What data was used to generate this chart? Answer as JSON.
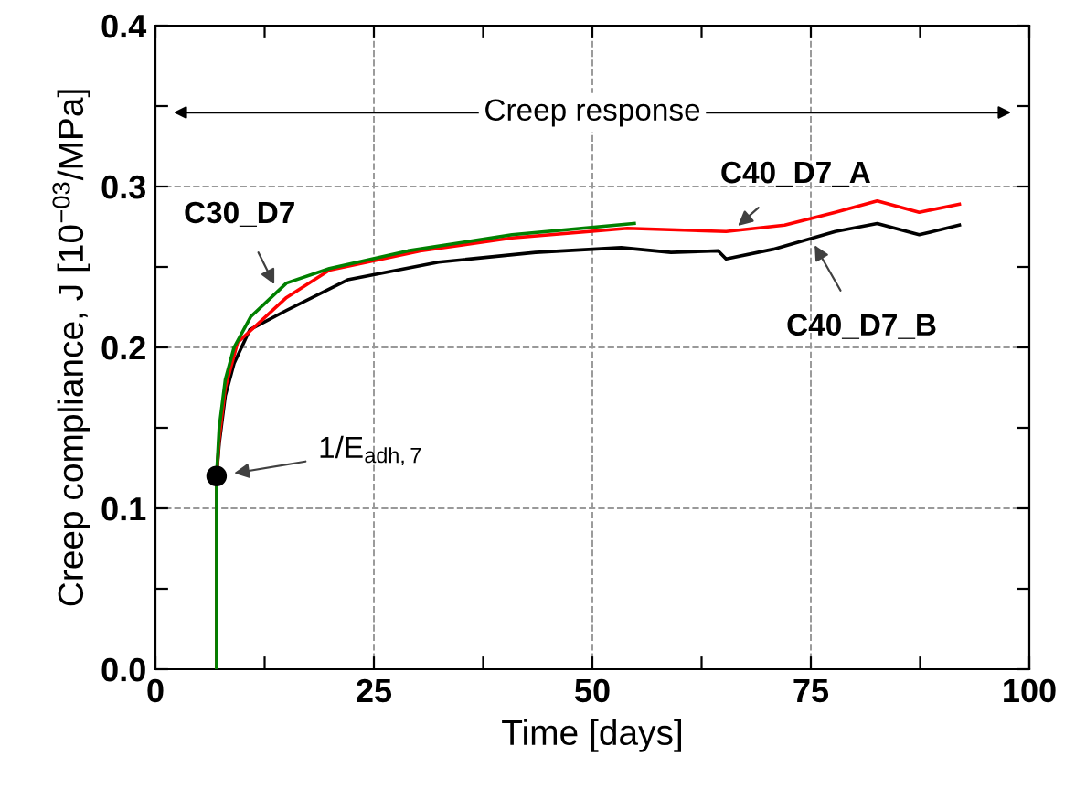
{
  "chart_data": {
    "type": "line",
    "xlabel": "Time [days]",
    "ylabel": "Creep compliance, J [10$^{−03}$/MPa]",
    "xlim": [
      0,
      100
    ],
    "xticks": [
      0,
      {
        "value": 12.5,
        "label": null
      },
      25,
      {
        "value": 37.5,
        "label": null
      },
      50,
      {
        "value": 62.5,
        "label": null
      },
      75,
      {
        "value": 87.5,
        "label": null
      },
      100
    ],
    "ylim": [
      0,
      0.4
    ],
    "yticks": [
      {
        "value": 0,
        "label": "0.0"
      },
      {
        "value": 0.05,
        "label": null
      },
      {
        "value": 0.1,
        "label": "0.1"
      },
      {
        "value": 0.15,
        "label": null
      },
      {
        "value": 0.2,
        "label": "0.2"
      },
      {
        "value": 0.25,
        "label": null
      },
      {
        "value": 0.3,
        "label": "0.3"
      },
      {
        "value": 0.35,
        "label": null
      },
      {
        "value": 0.4,
        "label": "0.4"
      }
    ],
    "grid": true,
    "legend": false,
    "line_style": "solid",
    "marker": "none",
    "series": [
      {
        "name": "C40_D7_B",
        "color": "#000000",
        "x": [
          7,
          7,
          7.3,
          8,
          9,
          10.8,
          15,
          22,
          32.4,
          43.5,
          53.3,
          59,
          64.4,
          65.3,
          70.7,
          77.8,
          82.6,
          87.4,
          92
        ],
        "values": [
          0,
          0.12,
          0.14,
          0.17,
          0.19,
          0.211,
          0.223,
          0.242,
          0.253,
          0.259,
          0.262,
          0.259,
          0.26,
          0.255,
          0.261,
          0.272,
          0.277,
          0.27,
          0.276
        ]
      },
      {
        "name": "C40_D7_A",
        "color": "#ff0000",
        "x": [
          7,
          7,
          7.3,
          8,
          9.4,
          15,
          19.9,
          30.3,
          40.8,
          54,
          65.3,
          72,
          77.8,
          82.6,
          87.4,
          92
        ],
        "values": [
          0,
          0.12,
          0.143,
          0.175,
          0.203,
          0.231,
          0.248,
          0.26,
          0.268,
          0.274,
          0.272,
          0.276,
          0.284,
          0.291,
          0.284,
          0.289
        ]
      },
      {
        "name": "C30_D7",
        "color": "#008000",
        "x": [
          7,
          7,
          7.3,
          8,
          9,
          10.9,
          15,
          19.9,
          28.9,
          40.8,
          54.8
        ],
        "values": [
          0,
          0.12,
          0.15,
          0.18,
          0.2,
          0.219,
          0.24,
          0.249,
          0.26,
          0.27,
          0.277
        ]
      },
      {
        "type": "scatter",
        "marker": "circle",
        "color": "#000000",
        "x": [
          7
        ],
        "values": [
          0.12
        ]
      }
    ],
    "annotations": [
      "Creep response",
      "1/E$_{adh,7}$"
    ]
  }
}
